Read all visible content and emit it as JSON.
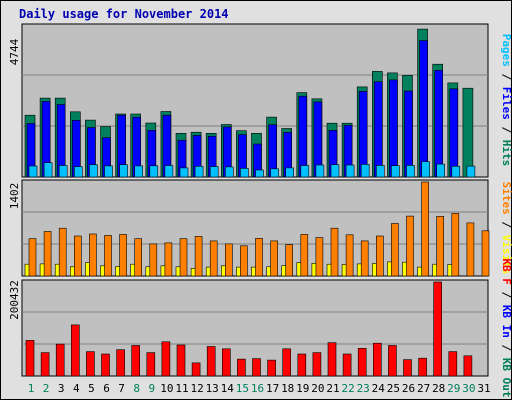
{
  "chart_data": [
    {
      "type": "bar",
      "title": "Daily usage for November 2014",
      "categories": [
        "1",
        "2",
        "3",
        "4",
        "5",
        "6",
        "7",
        "8",
        "9",
        "10",
        "11",
        "12",
        "13",
        "14",
        "15",
        "16",
        "17",
        "18",
        "19",
        "20",
        "21",
        "22",
        "23",
        "24",
        "25",
        "26",
        "27",
        "28",
        "29",
        "30",
        "31"
      ],
      "weekend_days": [
        "1",
        "2",
        "8",
        "9",
        "15",
        "16",
        "22",
        "23",
        "29",
        "30"
      ],
      "ymax_label": "4744",
      "ylim": [
        0,
        4744
      ],
      "series": [
        {
          "name": "Pages",
          "color": "#00c0ff",
          "values": [
            348,
            451,
            364,
            330,
            390,
            352,
            390,
            352,
            355,
            364,
            287,
            339,
            330,
            320,
            272,
            221,
            258,
            287,
            364,
            380,
            390,
            380,
            397,
            368,
            358,
            368,
            486,
            409,
            339,
            345,
            null
          ]
        },
        {
          "name": "Files",
          "color": "#0000ff",
          "values": [
            1692,
            2391,
            2294,
            1794,
            1566,
            1247,
            1953,
            1892,
            1476,
            1953,
            1165,
            1315,
            1290,
            1584,
            1340,
            1044,
            1655,
            1411,
            2556,
            2374,
            1473,
            1634,
            2707,
            3015,
            3071,
            2720,
            4318,
            3370,
            2790,
            null,
            null
          ]
        },
        {
          "name": "Hits",
          "color": "#00805c",
          "values": [
            1953,
            2494,
            2494,
            2063,
            1798,
            1595,
            1992,
            1992,
            1707,
            2073,
            1383,
            1418,
            1383,
            1661,
            1464,
            1383,
            1895,
            1533,
            2669,
            2472,
            1700,
            1700,
            2848,
            3339,
            3292,
            3212,
            4679,
            3568,
            2976,
            2810,
            null
          ]
        }
      ]
    },
    {
      "type": "bar",
      "ymax_label": "1402",
      "ylim": [
        0,
        1402
      ],
      "series": [
        {
          "name": "Visits",
          "color": "#ffff00",
          "values": [
            176,
            181,
            176,
            137,
            198,
            152,
            142,
            176,
            137,
            152,
            137,
            113,
            132,
            152,
            132,
            132,
            137,
            155,
            200,
            190,
            176,
            171,
            181,
            186,
            210,
            206,
            132,
            176,
            171,
            null,
            null
          ]
        },
        {
          "name": "Sites",
          "color": "#ff8000",
          "values": [
            557,
            664,
            713,
            596,
            626,
            606,
            620,
            557,
            479,
            494,
            557,
            591,
            523,
            479,
            451,
            563,
            523,
            467,
            620,
            572,
            713,
            615,
            523,
            596,
            783,
            894,
            1402,
            891,
            934,
            792,
            674
          ]
        }
      ]
    },
    {
      "type": "bar",
      "ymax_label": "200432",
      "ylim": [
        0,
        200432
      ],
      "series": [
        {
          "name": "KB F",
          "color": "#ff0000",
          "values": [
            76000,
            50000,
            68000,
            109000,
            52000,
            47000,
            56000,
            65000,
            50000,
            73000,
            66000,
            28000,
            63000,
            58000,
            36000,
            37000,
            34000,
            58000,
            47000,
            50000,
            71000,
            47000,
            59000,
            70000,
            65000,
            35000,
            38000,
            200432,
            52000,
            43000,
            null
          ]
        },
        {
          "name": "KB In",
          "color": "#0000ff",
          "values": []
        },
        {
          "name": "KB Out",
          "color": "#00805c",
          "values": []
        }
      ]
    }
  ]
}
